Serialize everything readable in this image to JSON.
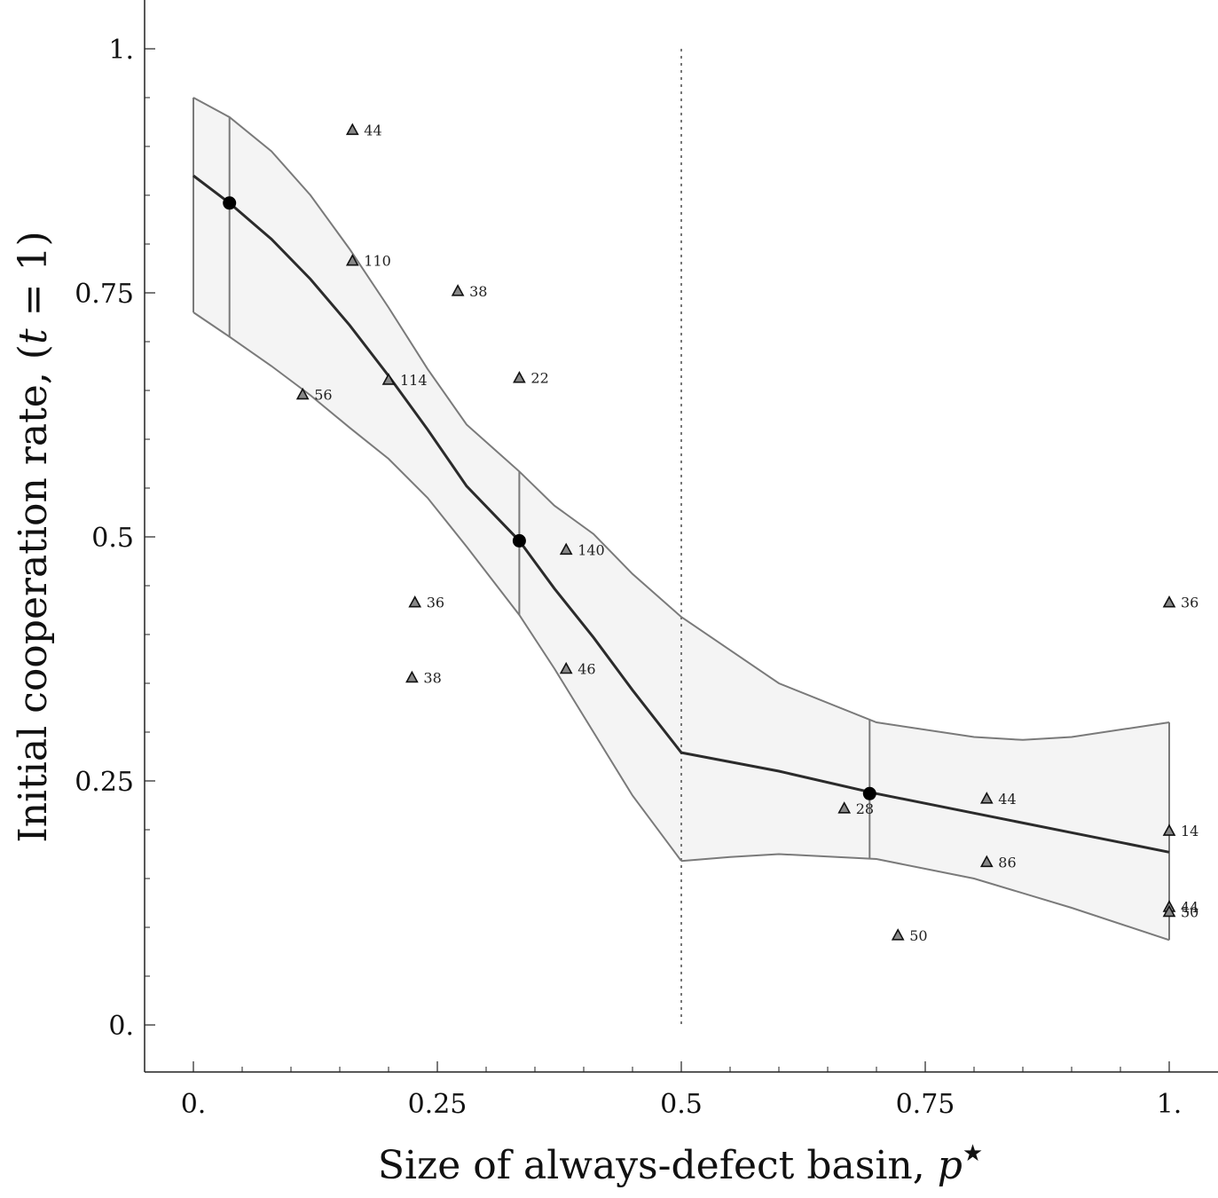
{
  "chart_data": {
    "type": "scatter",
    "xlabel": "Size of always-defect basin, ",
    "xlabel_var": "p",
    "xlabel_sup": "★",
    "ylabel": "Initial cooperation rate, (",
    "ylabel_var": "t",
    "ylabel_tail": " = 1)",
    "xlim": [
      -0.05,
      1.05
    ],
    "ylim": [
      -0.05,
      1.05
    ],
    "x_ticks": [
      {
        "value": 0,
        "label": "0."
      },
      {
        "value": 0.25,
        "label": "0.25"
      },
      {
        "value": 0.5,
        "label": "0.5"
      },
      {
        "value": 0.75,
        "label": "0.75"
      },
      {
        "value": 1,
        "label": "1."
      }
    ],
    "y_ticks": [
      {
        "value": 0,
        "label": "0."
      },
      {
        "value": 0.25,
        "label": "0.25"
      },
      {
        "value": 0.5,
        "label": "0.5"
      },
      {
        "value": 0.75,
        "label": "0.75"
      },
      {
        "value": 1,
        "label": "1."
      }
    ],
    "threshold_x": 0.5,
    "colors": {
      "band_fill": "#f4f4f4",
      "band_edge": "#7a7a7a",
      "fit_line": "#2b2b2b",
      "marker_fill": "#888888",
      "marker_edge": "#111111",
      "threshold": "#777777"
    },
    "fit_curve": [
      [
        0.0,
        0.87
      ],
      [
        0.037,
        0.842
      ],
      [
        0.08,
        0.805
      ],
      [
        0.12,
        0.764
      ],
      [
        0.16,
        0.717
      ],
      [
        0.2,
        0.665
      ],
      [
        0.24,
        0.61
      ],
      [
        0.28,
        0.552
      ],
      [
        0.334,
        0.496
      ],
      [
        0.37,
        0.447
      ],
      [
        0.41,
        0.397
      ],
      [
        0.45,
        0.343
      ],
      [
        0.5,
        0.279
      ],
      [
        0.6,
        0.26
      ],
      [
        0.7,
        0.237
      ],
      [
        0.8,
        0.217
      ],
      [
        0.9,
        0.197
      ],
      [
        1.0,
        0.177
      ]
    ],
    "band_upper": [
      [
        0.0,
        0.95
      ],
      [
        0.037,
        0.93
      ],
      [
        0.08,
        0.895
      ],
      [
        0.12,
        0.85
      ],
      [
        0.16,
        0.795
      ],
      [
        0.2,
        0.735
      ],
      [
        0.24,
        0.672
      ],
      [
        0.28,
        0.615
      ],
      [
        0.334,
        0.567
      ],
      [
        0.37,
        0.532
      ],
      [
        0.41,
        0.503
      ],
      [
        0.45,
        0.462
      ],
      [
        0.5,
        0.418
      ],
      [
        0.6,
        0.35
      ],
      [
        0.7,
        0.31
      ],
      [
        0.8,
        0.295
      ],
      [
        0.85,
        0.292
      ],
      [
        0.9,
        0.295
      ],
      [
        1.0,
        0.31
      ]
    ],
    "band_lower": [
      [
        0.0,
        0.73
      ],
      [
        0.037,
        0.705
      ],
      [
        0.08,
        0.675
      ],
      [
        0.12,
        0.645
      ],
      [
        0.16,
        0.612
      ],
      [
        0.2,
        0.58
      ],
      [
        0.24,
        0.54
      ],
      [
        0.28,
        0.49
      ],
      [
        0.334,
        0.42
      ],
      [
        0.37,
        0.365
      ],
      [
        0.41,
        0.3
      ],
      [
        0.45,
        0.235
      ],
      [
        0.5,
        0.168
      ],
      [
        0.55,
        0.172
      ],
      [
        0.6,
        0.175
      ],
      [
        0.7,
        0.17
      ],
      [
        0.8,
        0.15
      ],
      [
        0.9,
        0.12
      ],
      [
        1.0,
        0.087
      ]
    ],
    "fit_points": [
      {
        "x": 0.037,
        "y": 0.842,
        "lo": 0.705,
        "hi": 0.93
      },
      {
        "x": 0.334,
        "y": 0.496,
        "lo": 0.42,
        "hi": 0.567
      },
      {
        "x": 0.693,
        "y": 0.237,
        "lo": 0.17,
        "hi": 0.313
      }
    ],
    "points": [
      {
        "x": 0.163,
        "y": 0.917,
        "label": "44"
      },
      {
        "x": 0.163,
        "y": 0.783,
        "label": "110"
      },
      {
        "x": 0.271,
        "y": 0.752,
        "label": "38"
      },
      {
        "x": 0.2,
        "y": 0.661,
        "label": "114"
      },
      {
        "x": 0.112,
        "y": 0.646,
        "label": "56"
      },
      {
        "x": 0.334,
        "y": 0.663,
        "label": "22"
      },
      {
        "x": 0.382,
        "y": 0.487,
        "label": "140"
      },
      {
        "x": 0.227,
        "y": 0.433,
        "label": "36"
      },
      {
        "x": 0.224,
        "y": 0.356,
        "label": "38"
      },
      {
        "x": 0.382,
        "y": 0.365,
        "label": "46"
      },
      {
        "x": 0.667,
        "y": 0.222,
        "label": "28"
      },
      {
        "x": 0.813,
        "y": 0.232,
        "label": "44"
      },
      {
        "x": 0.813,
        "y": 0.167,
        "label": "86"
      },
      {
        "x": 0.722,
        "y": 0.092,
        "label": "50"
      },
      {
        "x": 1.0,
        "y": 0.433,
        "label": "36"
      },
      {
        "x": 1.0,
        "y": 0.199,
        "label": "14"
      },
      {
        "x": 1.0,
        "y": 0.121,
        "label": "44"
      },
      {
        "x": 1.0,
        "y": 0.116,
        "label": "50"
      }
    ]
  }
}
